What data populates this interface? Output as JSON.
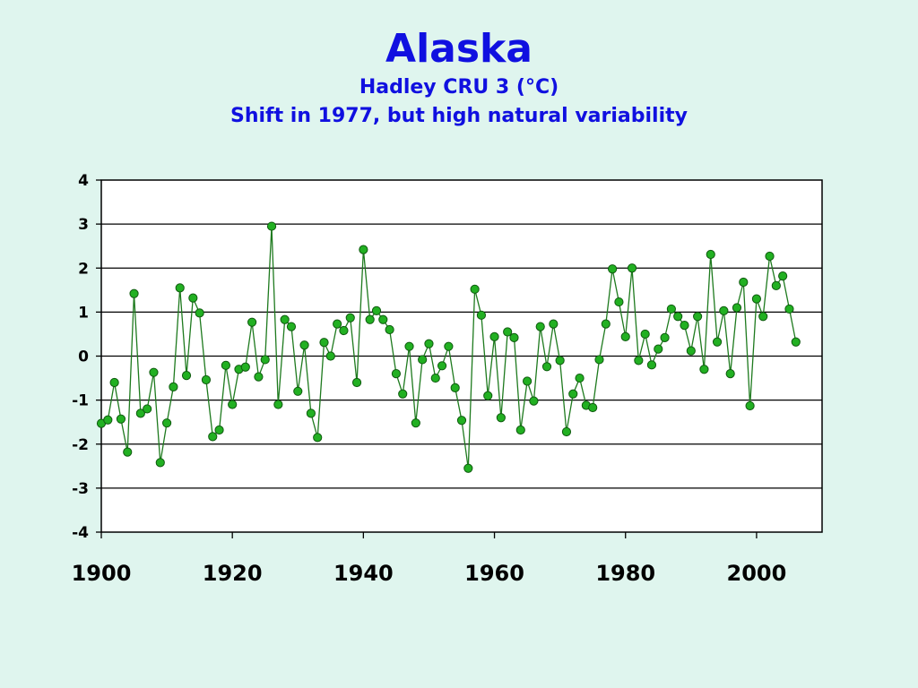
{
  "chart_data": {
    "type": "line",
    "title": "Alaska",
    "subtitle": [
      "Hadley CRU 3 (°C)",
      "Shift in 1977, but high natural variability"
    ],
    "xlabel": "",
    "ylabel": "",
    "xlim": [
      1900,
      2010
    ],
    "ylim": [
      -4,
      4
    ],
    "x_ticks": [
      1900,
      1920,
      1940,
      1960,
      1980,
      2000
    ],
    "y_ticks": [
      4,
      3,
      2,
      1,
      0,
      -1,
      -2,
      -3,
      -4
    ],
    "grid": "horizontal",
    "colors": {
      "line": "#1e7a1e",
      "marker_fill": "#22b022",
      "marker_edge": "#0f5a0f",
      "text": "#1010e0",
      "plot_bg": "#ffffff"
    },
    "series": [
      {
        "x": [
          1900,
          1901,
          1902,
          1903,
          1904,
          1905,
          1906,
          1907,
          1908,
          1909,
          1910,
          1911,
          1912,
          1913,
          1914,
          1915,
          1916,
          1917,
          1918,
          1919,
          1920,
          1921,
          1922,
          1923,
          1924,
          1925,
          1926,
          1927,
          1928,
          1929,
          1930,
          1931,
          1932,
          1933,
          1934,
          1935,
          1936,
          1937,
          1938,
          1939,
          1940,
          1941,
          1942,
          1943,
          1944,
          1945,
          1946,
          1947,
          1948,
          1949,
          1950,
          1951,
          1952,
          1953,
          1954,
          1955,
          1956,
          1957,
          1958,
          1959,
          1960,
          1961,
          1962,
          1963,
          1964,
          1965,
          1966,
          1967,
          1968,
          1969,
          1970,
          1971,
          1972,
          1973,
          1974,
          1975,
          1976,
          1977,
          1978,
          1979,
          1980,
          1981,
          1982,
          1983,
          1984,
          1985,
          1986,
          1987,
          1988,
          1989,
          1990,
          1991,
          1992,
          1993,
          1994,
          1995,
          1996,
          1997,
          1998,
          1999,
          2000,
          2001,
          2002,
          2003,
          2004,
          2005,
          2006
        ],
        "y": [
          -1.53,
          -1.45,
          -0.6,
          -1.43,
          -2.18,
          1.42,
          -1.3,
          -1.2,
          -0.37,
          -2.42,
          -1.52,
          -0.7,
          1.55,
          -0.44,
          1.32,
          0.98,
          -0.54,
          -1.83,
          -1.68,
          -0.21,
          -1.1,
          -0.3,
          -0.25,
          0.77,
          -0.47,
          -0.08,
          2.95,
          -1.1,
          0.83,
          0.67,
          -0.8,
          0.25,
          -1.3,
          -1.85,
          0.31,
          0.0,
          0.73,
          0.58,
          0.87,
          -0.6,
          2.42,
          0.83,
          1.03,
          0.83,
          0.6,
          -0.4,
          -0.86,
          0.22,
          -1.52,
          -0.08,
          0.28,
          -0.5,
          -0.22,
          0.22,
          -0.72,
          -1.46,
          -2.55,
          1.52,
          0.93,
          -0.9,
          0.44,
          -1.4,
          0.55,
          0.42,
          -1.68,
          -0.57,
          -1.02,
          0.67,
          -0.24,
          0.73,
          -0.1,
          -1.72,
          -0.86,
          -0.5,
          -1.12,
          -1.17,
          -0.08,
          0.73,
          1.98,
          1.23,
          0.44,
          2.0,
          -0.1,
          0.5,
          -0.2,
          0.16,
          0.42,
          1.07,
          0.9,
          0.7,
          0.12,
          0.9,
          -0.3,
          2.31,
          0.32,
          1.03,
          -0.4,
          1.1,
          1.68,
          -1.13,
          1.3,
          0.9,
          2.27,
          1.6,
          1.82,
          1.07,
          0.32
        ]
      }
    ]
  }
}
